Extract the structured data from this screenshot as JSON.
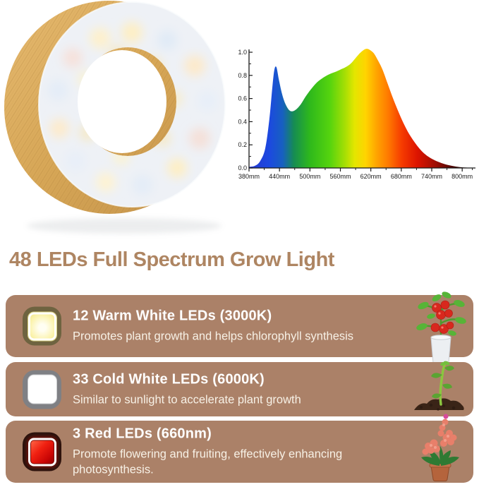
{
  "title": {
    "text": "48 LEDs Full Spectrum Grow Light",
    "color": "#ae8562"
  },
  "colors": {
    "card_bg": "#ab8168",
    "heading_text": "#ffffff",
    "description_text": "#f7f1e6",
    "wood": "#d9ab5e",
    "diffuser": "#eef1f6"
  },
  "product_image": {
    "description": "wooden ring grow light with 48 LEDs"
  },
  "cards": [
    {
      "icon": "warm-white-led-icon",
      "heading": "12 Warm White LEDs (3000K)",
      "description": "Promotes plant growth and helps chlorophyll synthesis",
      "led_outer": "#6e6340",
      "led_inner": "#fbf5bd",
      "plant": "tomato-plant"
    },
    {
      "icon": "cold-white-led-icon",
      "heading": "33 Cold White LEDs (6000K)",
      "description": "Similar to sunlight to accelerate plant growth",
      "led_outer": "#7f8084",
      "led_inner": "#ffffff",
      "plant": "seedling"
    },
    {
      "icon": "red-led-icon",
      "heading": "3 Red LEDs (660nm)",
      "description": "Promote flowering and fruiting, effectively enhancing photosynthesis.",
      "led_outer": "#2b130d",
      "led_inner": "#e31111",
      "plant": "flowering-plant"
    }
  ],
  "chart_data": {
    "type": "area",
    "title": "",
    "xlabel": "",
    "ylabel": "",
    "legend": false,
    "grid": false,
    "xlim": [
      380,
      822
    ],
    "ylim": [
      0,
      1.05
    ],
    "x_tick_values": [
      380,
      440,
      500,
      560,
      620,
      680,
      740,
      800
    ],
    "x_tick_labels": [
      "380mm",
      "440mm",
      "500mm",
      "560mm",
      "620mm",
      "680mm",
      "740mm",
      "800mm"
    ],
    "x_minor_ticks": [
      410,
      470,
      530,
      590,
      650,
      710,
      770,
      820
    ],
    "y_tick_values": [
      0.0,
      0.2,
      0.4,
      0.6,
      0.8,
      1.0
    ],
    "y_tick_labels": [
      "0.0",
      "0.2",
      "0.4",
      "0.6",
      "0.8",
      "1.0"
    ],
    "y_minor_ticks": [
      0.1,
      0.3,
      0.5,
      0.7,
      0.9
    ],
    "x": [
      380,
      392,
      402,
      412,
      420,
      426,
      430,
      434,
      439,
      445,
      452,
      459,
      466,
      474,
      482,
      492,
      502,
      514,
      526,
      538,
      550,
      560,
      570,
      580,
      590,
      598,
      606,
      612,
      618,
      626,
      634,
      643,
      653,
      663,
      673,
      684,
      696,
      710,
      724,
      738,
      752,
      766,
      780,
      795,
      810,
      822
    ],
    "y": [
      0.01,
      0.02,
      0.06,
      0.17,
      0.42,
      0.7,
      0.85,
      0.87,
      0.76,
      0.64,
      0.55,
      0.5,
      0.49,
      0.51,
      0.55,
      0.62,
      0.68,
      0.74,
      0.78,
      0.81,
      0.83,
      0.85,
      0.87,
      0.9,
      0.95,
      0.99,
      1.02,
      1.03,
      1.02,
      0.99,
      0.93,
      0.85,
      0.73,
      0.61,
      0.5,
      0.39,
      0.29,
      0.2,
      0.13,
      0.085,
      0.055,
      0.033,
      0.018,
      0.008,
      0.003,
      0.0
    ],
    "fill_gradient": [
      [
        0.0,
        "#2638cf"
      ],
      [
        0.09,
        "#1c49e0"
      ],
      [
        0.15,
        "#1760c0"
      ],
      [
        0.2,
        "#168c52"
      ],
      [
        0.27,
        "#2eb81c"
      ],
      [
        0.36,
        "#55d40e"
      ],
      [
        0.43,
        "#a8df04"
      ],
      [
        0.47,
        "#e3e600"
      ],
      [
        0.52,
        "#ffd400"
      ],
      [
        0.57,
        "#ffa300"
      ],
      [
        0.62,
        "#ff7a00"
      ],
      [
        0.68,
        "#f63c00"
      ],
      [
        0.75,
        "#dd1400"
      ],
      [
        0.83,
        "#a00e04"
      ],
      [
        0.91,
        "#4a0603"
      ],
      [
        1.0,
        "#0b0101"
      ]
    ],
    "axis_color": "#1a1a1a",
    "tick_label_color": "#1a1a1a"
  }
}
